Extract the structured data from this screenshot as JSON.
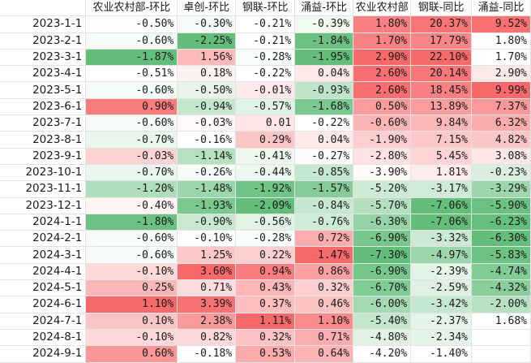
{
  "headers": [
    "",
    "农业农村部-环比",
    "卓创-环比",
    "钢联-环比",
    "涌益-环比",
    "农业农村部",
    "钢联-同比",
    "涌益-同比"
  ],
  "rows": [
    {
      "date": "2023-1-1",
      "values": [
        "-0.50%",
        "-0.30%",
        "-0.21%",
        "-0.39%",
        "1.80%",
        "20.37%",
        "9.52%"
      ]
    },
    {
      "date": "2023-2-1",
      "values": [
        "-0.60%",
        "-2.25%",
        "-0.21%",
        "-1.84%",
        "1.70%",
        "17.79%",
        "1.80%"
      ]
    },
    {
      "date": "2023-3-1",
      "values": [
        "-1.87%",
        "1.56%",
        "-0.28%",
        "-1.95%",
        "2.90%",
        "22.10%",
        "1.70%"
      ]
    },
    {
      "date": "2023-4-1",
      "values": [
        "-0.51%",
        "0.18%",
        "-0.22%",
        "0.04%",
        "2.60%",
        "20.14%",
        "2.90%"
      ]
    },
    {
      "date": "2023-5-1",
      "values": [
        "-0.60%",
        "-0.50%",
        "-0.01%",
        "-0.93%",
        "2.60%",
        "18.45%",
        "9.99%"
      ]
    },
    {
      "date": "2023-6-1",
      "values": [
        "0.90%",
        "-0.94%",
        "-0.57%",
        "-1.68%",
        "0.50%",
        "13.89%",
        "7.37%"
      ]
    },
    {
      "date": "2023-7-1",
      "values": [
        "-0.60%",
        "-0.03%",
        "0.01",
        "-0.22%",
        "-0.60%",
        "9.84%",
        "6.32%"
      ]
    },
    {
      "date": "2023-8-1",
      "values": [
        "-0.70%",
        "-0.16%",
        "0.29%",
        "0.04%",
        "-1.90%",
        "7.15%",
        "4.82%"
      ]
    },
    {
      "date": "2023-9-1",
      "values": [
        "-0.03%",
        "-1.14%",
        "-0.41%",
        "-0.27%",
        "-2.80%",
        "5.45%",
        "3.08%"
      ]
    },
    {
      "date": "2023-10-1",
      "values": [
        "-0.70%",
        "-0.26%",
        "-0.44%",
        "-0.85%",
        "-3.90%",
        "1.81%",
        "-0.23%"
      ]
    },
    {
      "date": "2023-11-1",
      "values": [
        "-1.20%",
        "-1.48%",
        "-1.92%",
        "-1.57%",
        "-5.20%",
        "-3.17%",
        "-3.29%"
      ]
    },
    {
      "date": "2023-12-1",
      "values": [
        "-0.40%",
        "-1.93%",
        "-2.09%",
        "-0.84%",
        "-5.70%",
        "-7.06%",
        "-5.90%"
      ]
    },
    {
      "date": "2024-1-1",
      "values": [
        "-1.80%",
        "-0.90%",
        "-0.56%",
        "-0.76%",
        "-6.30%",
        "-7.06%",
        "-6.23%"
      ]
    },
    {
      "date": "2024-2-1",
      "values": [
        "-0.60%",
        "-0.10%",
        "-0.28%",
        "0.72%",
        "-6.90%",
        "-3.32%",
        "-6.30%"
      ]
    },
    {
      "date": "2024-3-1",
      "values": [
        "-0.60%",
        "1.25%",
        "0.22%",
        "1.47%",
        "-7.30%",
        "-4.97%",
        "-5.83%"
      ]
    },
    {
      "date": "2024-4-1",
      "values": [
        "-0.10%",
        "3.60%",
        "0.94%",
        "0.86%",
        "-6.90%",
        "-2.39%",
        "-4.74%"
      ]
    },
    {
      "date": "2024-5-1",
      "values": [
        "0.25%",
        "0.71%",
        "0.43%",
        "0.32%",
        "-6.70%",
        "-2.59%",
        "-4.32%"
      ]
    },
    {
      "date": "2024-6-1",
      "values": [
        "1.10%",
        "3.39%",
        "0.37%",
        "0.46%",
        "-6.00%",
        "-3.42%",
        "-2.00%"
      ]
    },
    {
      "date": "2024-7-1",
      "values": [
        "0.10%",
        "2.38%",
        "1.11%",
        "1.10%",
        "-5.40%",
        "-2.37%",
        "1.68%"
      ]
    },
    {
      "date": "2024-8-1",
      "values": [
        "-0.10%",
        "0.82%",
        "0.32%",
        "0.71%",
        "-4.80%",
        "-2.34%",
        ""
      ]
    },
    {
      "date": "2024-9-1",
      "values": [
        "0.60%",
        "-0.18%",
        "0.53%",
        "0.64%",
        "-4.20%",
        "-1.40%",
        ""
      ]
    }
  ],
  "colors": {
    "positive": "#f8696b",
    "neutral": "#ffffff",
    "negative": "#63be7b",
    "grid": "#e3e3e3"
  }
}
